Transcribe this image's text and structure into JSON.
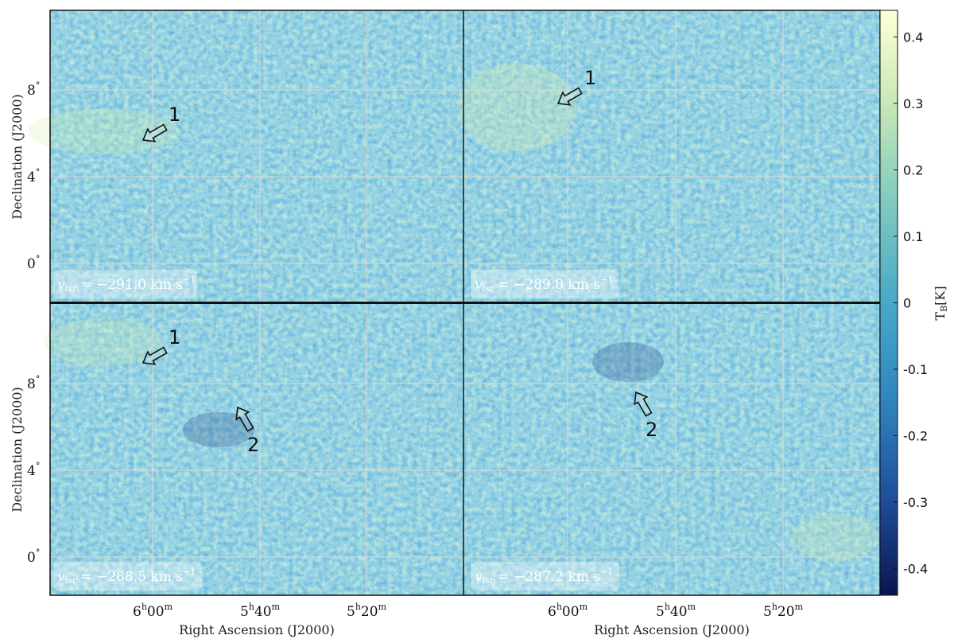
{
  "figure": {
    "y_axis_label": "Declination (J2000)",
    "x_axis_label": "Right Ascension (J2000)",
    "ra_ticks": [
      {
        "h": "6",
        "m": "00"
      },
      {
        "h": "5",
        "m": "40"
      },
      {
        "h": "5",
        "m": "20"
      }
    ],
    "dec_ticks_top": [
      {
        "v": "8",
        "u": "°"
      },
      {
        "v": "4",
        "u": "°"
      },
      {
        "v": "0",
        "u": "°"
      }
    ],
    "dec_ticks_bottom": [
      {
        "v": "8",
        "u": "°"
      },
      {
        "v": "4",
        "u": "°"
      },
      {
        "v": "0",
        "u": "°"
      }
    ],
    "colorbar": {
      "label": "T",
      "label_sub": "B",
      "label_unit": "[K]",
      "ticks": [
        "0.4",
        "0.3",
        "0.2",
        "0.1",
        "0",
        "-0.1",
        "-0.2",
        "-0.3",
        "-0.4"
      ],
      "range": [
        -0.44,
        0.44
      ],
      "colors": [
        "#0a1550",
        "#1f4f9a",
        "#2f85bf",
        "#46a9c7",
        "#7ec9c0",
        "#c4e7b6",
        "#ffffd6"
      ]
    },
    "panels": [
      {
        "name": "panel-top-left",
        "velocity": "−291.0",
        "unit": "km s",
        "unit_sup": "−1",
        "markers": [
          {
            "label": "1"
          }
        ]
      },
      {
        "name": "panel-top-right",
        "velocity": "−289.8",
        "unit": "km s",
        "unit_sup": "−1",
        "markers": [
          {
            "label": "1"
          }
        ]
      },
      {
        "name": "panel-bottom-left",
        "velocity": "−288.5",
        "unit": "km s",
        "unit_sup": "−1",
        "markers": [
          {
            "label": "1"
          },
          {
            "label": "2"
          }
        ]
      },
      {
        "name": "panel-bottom-right",
        "velocity": "−287.2",
        "unit": "km s",
        "unit_sup": "−1",
        "markers": [
          {
            "label": "2"
          }
        ]
      }
    ]
  }
}
